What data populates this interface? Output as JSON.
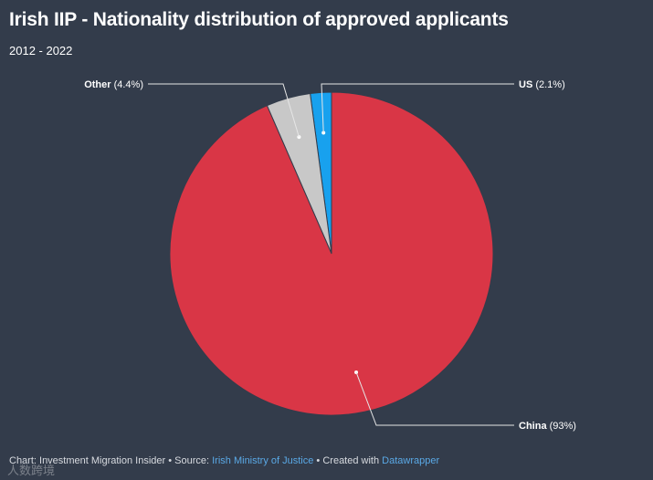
{
  "title": "Irish IIP - Nationality distribution of approved applicants",
  "subtitle": "2012 - 2022",
  "chart_data": {
    "type": "pie",
    "slices": [
      {
        "name": "China",
        "value": 93,
        "label_value": "(93%)",
        "color": "#d93646"
      },
      {
        "name": "Other",
        "value": 4.4,
        "label_value": "(4.4%)",
        "color": "#c8c8c8"
      },
      {
        "name": "US",
        "value": 2.1,
        "label_value": "(2.1%)",
        "color": "#18a1ee"
      }
    ]
  },
  "footer": {
    "chart_prefix": "Chart: Investment Migration Insider • Source: ",
    "source_link": "Irish Ministry of Justice",
    "created_prefix": " • Created with ",
    "tool_link": "Datawrapper"
  },
  "watermark": "人数跨境"
}
